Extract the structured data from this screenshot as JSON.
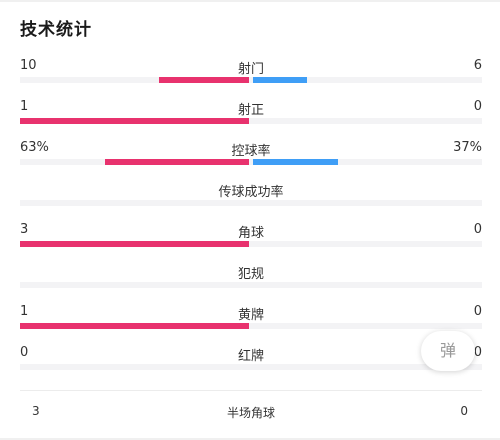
{
  "title": "技术统计",
  "stats": [
    {
      "label": "射门",
      "left": "10",
      "right": "6",
      "left_fill": 0.625,
      "right_fill": 0.375
    },
    {
      "label": "射正",
      "left": "1",
      "right": "0",
      "left_fill": 1.0,
      "right_fill": 0.0
    },
    {
      "label": "控球率",
      "left": "63%",
      "right": "37%",
      "left_fill": 0.63,
      "right_fill": 0.37
    },
    {
      "label": "传球成功率",
      "left": "",
      "right": "",
      "left_fill": 0.0,
      "right_fill": 0.0
    },
    {
      "label": "角球",
      "left": "3",
      "right": "0",
      "left_fill": 1.0,
      "right_fill": 0.0
    },
    {
      "label": "犯规",
      "left": "",
      "right": "",
      "left_fill": 0.0,
      "right_fill": 0.0
    },
    {
      "label": "黄牌",
      "left": "1",
      "right": "0",
      "left_fill": 1.0,
      "right_fill": 0.0
    },
    {
      "label": "红牌",
      "left": "0",
      "right": "0",
      "left_fill": 0.0,
      "right_fill": 0.0
    }
  ],
  "float_button": {
    "label": "弹"
  },
  "half_time_corners": {
    "left": "3",
    "label": "半场角球",
    "right": "0"
  },
  "colors": {
    "home": "#e8326e",
    "away": "#3f9ef6",
    "track": "#f3f3f5"
  }
}
